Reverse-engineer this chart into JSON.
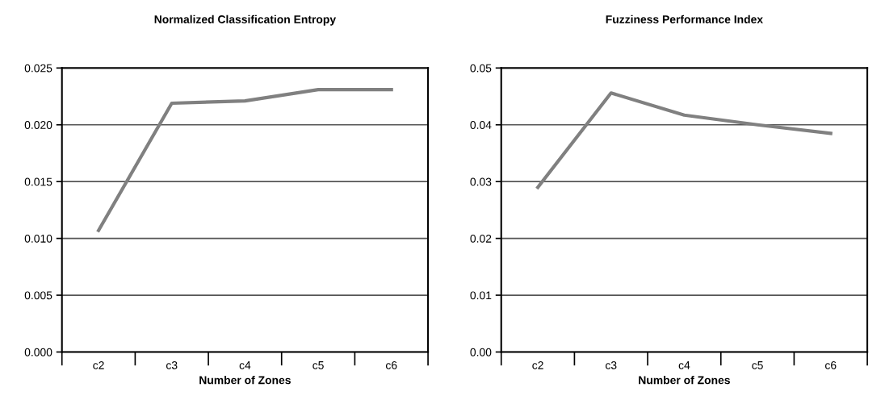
{
  "chart_data": [
    {
      "type": "line",
      "title": "Normalized Classification Entropy",
      "xlabel": "Number of Zones",
      "categories": [
        "c2",
        "c3",
        "c4",
        "c5",
        "c6"
      ],
      "series": [
        {
          "color": "#808080",
          "values": [
            0.0107,
            0.0219,
            0.0221,
            0.0231,
            0.0231
          ]
        }
      ],
      "ylim": [
        0,
        0.025
      ],
      "yticks": [
        {
          "value": 0,
          "label": "0.000"
        },
        {
          "value": 0.005,
          "label": "0.005"
        },
        {
          "value": 0.01,
          "label": "0.010"
        },
        {
          "value": 0.015,
          "label": "0.015"
        },
        {
          "value": 0.02,
          "label": "0.020"
        },
        {
          "value": 0.025,
          "label": "0.025"
        }
      ],
      "grid": "y",
      "marker": "none",
      "line_style": "solid"
    },
    {
      "type": "line",
      "title": "Fuzziness Performance Index",
      "xlabel": "Number of Zones",
      "categories": [
        "c2",
        "c3",
        "c4",
        "c5",
        "c6"
      ],
      "series": [
        {
          "color": "#808080",
          "values": [
            0.029,
            0.0456,
            0.0417,
            0.04,
            0.0385
          ]
        }
      ],
      "ylim": [
        0,
        0.05
      ],
      "yticks": [
        {
          "value": 0,
          "label": "0.00"
        },
        {
          "value": 0.01,
          "label": "0.01"
        },
        {
          "value": 0.02,
          "label": "0.02"
        },
        {
          "value": 0.03,
          "label": "0.03"
        },
        {
          "value": 0.04,
          "label": "0.04"
        },
        {
          "value": 0.05,
          "label": "0.05"
        }
      ],
      "grid": "y",
      "marker": "none",
      "line_style": "solid"
    }
  ]
}
